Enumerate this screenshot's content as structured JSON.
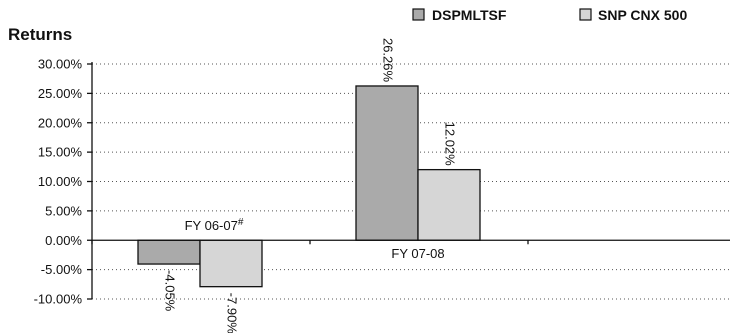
{
  "chart_data": {
    "type": "bar",
    "ylabel": "Returns",
    "categories": [
      "FY 06-07#",
      "FY 07-08"
    ],
    "category_labels": [
      {
        "text": "FY 06-07",
        "sup": "#"
      },
      {
        "text": "FY 07-08",
        "sup": ""
      }
    ],
    "series": [
      {
        "name": "DSPMLTSF",
        "values": [
          -4.05,
          26.26
        ],
        "labels": [
          "-4.05%",
          "26.26%"
        ],
        "color": "#aaaaaa"
      },
      {
        "name": "SNP CNX 500",
        "values": [
          -7.9,
          12.02
        ],
        "labels": [
          "-7.90%",
          "12.02%"
        ],
        "color": "#d6d6d6"
      }
    ],
    "ylim": [
      -10,
      30
    ],
    "yticks": [
      30,
      25,
      20,
      15,
      10,
      5,
      0,
      -5,
      -10
    ],
    "ytick_labels": [
      "30.00%",
      "25.00%",
      "20.00%",
      "15.00%",
      "10.00%",
      "5.00%",
      "0.00%",
      "-5.00%",
      "-10.00%"
    ],
    "grid": true,
    "legend_position": "top-right",
    "data_label_rotation": "vertical"
  }
}
